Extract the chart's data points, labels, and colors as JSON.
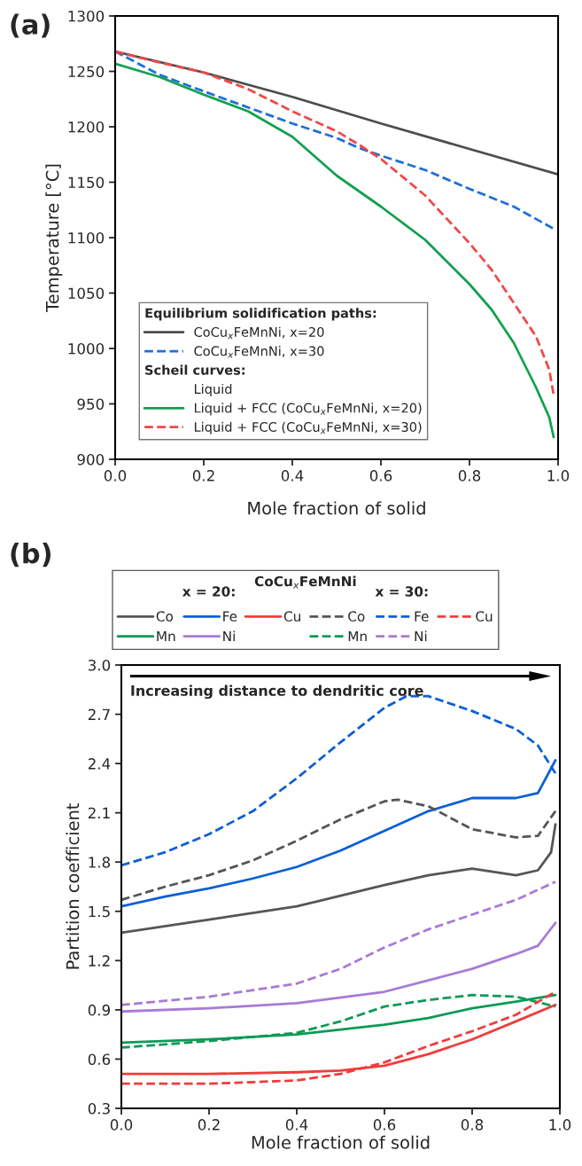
{
  "chart_data": [
    {
      "type": "line",
      "xlabel": "Mole fraction of solid",
      "ylabel": "Temperature [°C]",
      "xlim": [
        0,
        1
      ],
      "ylim": [
        900,
        1300
      ],
      "xticks": [
        {
          "value": 0,
          "label": "0.0"
        },
        {
          "value": 0.2,
          "label": "0.2"
        },
        {
          "value": 0.4,
          "label": "0.4"
        },
        {
          "value": 0.6,
          "label": "0.6"
        },
        {
          "value": 0.8,
          "label": "0.8"
        },
        {
          "value": 1,
          "label": "1.0"
        }
      ],
      "yticks": [
        900,
        950,
        1000,
        1050,
        1100,
        1150,
        1200,
        1250,
        1300
      ],
      "legend": "bottom left",
      "legend_title": "Equilibrium solidification paths:",
      "annotations": [
        "(a)",
        "Scheil curves:",
        "Liquid"
      ],
      "series": [
        {
          "name": "CoCu$_{x}$FeMnNi, x=20",
          "color": "#4d4d4d",
          "line_style": "solid",
          "x": [
            0,
            0.2,
            0.4,
            0.6,
            0.8,
            1.0
          ],
          "values": [
            1268,
            1249,
            1227,
            1203,
            1180,
            1157
          ]
        },
        {
          "name": "CoCu$_{x}$FeMnNi, x=30",
          "color": "#1f6fd8",
          "line_style": "dashed",
          "x": [
            0,
            0.1,
            0.2,
            0.4,
            0.5,
            0.55,
            0.6,
            0.7,
            0.8,
            0.9,
            0.99
          ],
          "values": [
            1268,
            1247,
            1232,
            1203,
            1190,
            1181,
            1174,
            1161,
            1144,
            1128,
            1108
          ]
        },
        {
          "name": "Liquid + FCC (CoCu$_{x}$FeMnNi, x=20)",
          "color": "#14a050",
          "line_style": "solid",
          "x": [
            0,
            0.1,
            0.2,
            0.3,
            0.4,
            0.5,
            0.6,
            0.7,
            0.8,
            0.85,
            0.9,
            0.95,
            0.98,
            0.99
          ],
          "values": [
            1257,
            1245,
            1229,
            1214,
            1191,
            1156,
            1128,
            1098,
            1058,
            1035,
            1005,
            965,
            938,
            920
          ]
        },
        {
          "name": "Liquid + FCC (CoCu$_{x}$FeMnNi, x=30)",
          "color": "#f04848",
          "line_style": "dashed",
          "x": [
            0,
            0.1,
            0.2,
            0.3,
            0.4,
            0.5,
            0.55,
            0.6,
            0.7,
            0.8,
            0.85,
            0.9,
            0.95,
            0.98,
            0.99
          ],
          "values": [
            1268,
            1258,
            1249,
            1234,
            1214,
            1196,
            1184,
            1171,
            1138,
            1095,
            1071,
            1041,
            1011,
            981,
            958
          ]
        }
      ]
    },
    {
      "type": "line",
      "xlabel": "Mole fraction of solid",
      "ylabel": "Partition coefficient",
      "xlim": [
        0,
        1
      ],
      "ylim": [
        0.3,
        3.0
      ],
      "xticks": [
        {
          "value": 0,
          "label": "0.0"
        },
        {
          "value": 0.2,
          "label": "0.2"
        },
        {
          "value": 0.4,
          "label": "0.4"
        },
        {
          "value": 0.6,
          "label": "0.6"
        },
        {
          "value": 0.8,
          "label": "0.8"
        },
        {
          "value": 1,
          "label": "1.0"
        }
      ],
      "yticks": [
        {
          "value": 0.3,
          "label": "0.3"
        },
        {
          "value": 0.6,
          "label": "0.6"
        },
        {
          "value": 0.9,
          "label": "0.9"
        },
        {
          "value": 1.2,
          "label": "1.2"
        },
        {
          "value": 1.5,
          "label": "1.5"
        },
        {
          "value": 1.8,
          "label": "1.8"
        },
        {
          "value": 2.1,
          "label": "2.1"
        },
        {
          "value": 2.4,
          "label": "2.4"
        },
        {
          "value": 2.7,
          "label": "2.7"
        },
        {
          "value": 3.0,
          "label": "3.0"
        }
      ],
      "legend": "top",
      "legend_title": "CoCu$_{x}$FeMnNi",
      "annotations": [
        "(b)",
        "x = 20:",
        "x = 30:",
        "Increasing distance to dendritic core"
      ],
      "series": [
        {
          "name": "Co",
          "color": "#555555",
          "line_style": "solid",
          "x": [
            0,
            0.2,
            0.4,
            0.6,
            0.7,
            0.8,
            0.9,
            0.95,
            0.98,
            0.99
          ],
          "values": [
            1.37,
            1.45,
            1.53,
            1.66,
            1.72,
            1.76,
            1.72,
            1.75,
            1.86,
            2.03
          ]
        },
        {
          "name": "Mn",
          "color": "#0c9a55",
          "line_style": "solid",
          "x": [
            0,
            0.2,
            0.4,
            0.6,
            0.7,
            0.8,
            0.9,
            0.99
          ],
          "values": [
            0.7,
            0.72,
            0.75,
            0.81,
            0.85,
            0.91,
            0.95,
            0.99
          ]
        },
        {
          "name": "Fe",
          "color": "#0a5fd6",
          "line_style": "solid",
          "x": [
            0,
            0.1,
            0.2,
            0.3,
            0.4,
            0.5,
            0.6,
            0.7,
            0.8,
            0.9,
            0.95,
            0.99
          ],
          "values": [
            1.53,
            1.59,
            1.64,
            1.7,
            1.77,
            1.87,
            1.99,
            2.11,
            2.19,
            2.19,
            2.22,
            2.42
          ]
        },
        {
          "name": "Ni",
          "color": "#a77bd6",
          "line_style": "solid",
          "x": [
            0,
            0.2,
            0.4,
            0.6,
            0.7,
            0.8,
            0.9,
            0.95,
            0.99
          ],
          "values": [
            0.89,
            0.91,
            0.94,
            1.01,
            1.08,
            1.15,
            1.24,
            1.29,
            1.43
          ]
        },
        {
          "name": "Cu",
          "color": "#f03c3c",
          "line_style": "solid",
          "x": [
            0,
            0.2,
            0.4,
            0.5,
            0.6,
            0.7,
            0.8,
            0.9,
            0.99
          ],
          "values": [
            0.51,
            0.51,
            0.52,
            0.53,
            0.56,
            0.63,
            0.72,
            0.83,
            0.93
          ]
        },
        {
          "name": "Co",
          "color": "#555555",
          "line_style": "dashed",
          "x": [
            0,
            0.1,
            0.2,
            0.3,
            0.4,
            0.5,
            0.6,
            0.63,
            0.7,
            0.8,
            0.9,
            0.95,
            0.99
          ],
          "values": [
            1.57,
            1.65,
            1.72,
            1.81,
            1.93,
            2.06,
            2.17,
            2.18,
            2.14,
            2.0,
            1.95,
            1.96,
            2.11
          ]
        },
        {
          "name": "Mn",
          "color": "#0c9a55",
          "line_style": "dashed",
          "x": [
            0,
            0.2,
            0.4,
            0.5,
            0.6,
            0.7,
            0.8,
            0.9,
            0.99
          ],
          "values": [
            0.67,
            0.71,
            0.76,
            0.83,
            0.92,
            0.96,
            0.99,
            0.98,
            0.92
          ]
        },
        {
          "name": "Fe",
          "color": "#0a5fd6",
          "line_style": "dashed",
          "x": [
            0,
            0.1,
            0.2,
            0.3,
            0.4,
            0.5,
            0.6,
            0.65,
            0.7,
            0.8,
            0.9,
            0.95,
            0.99
          ],
          "values": [
            1.78,
            1.86,
            1.97,
            2.11,
            2.31,
            2.53,
            2.74,
            2.81,
            2.81,
            2.72,
            2.61,
            2.51,
            2.34
          ]
        },
        {
          "name": "Ni",
          "color": "#a77bd6",
          "line_style": "dashed",
          "x": [
            0,
            0.2,
            0.4,
            0.5,
            0.6,
            0.7,
            0.8,
            0.9,
            0.99
          ],
          "values": [
            0.93,
            0.98,
            1.06,
            1.15,
            1.28,
            1.39,
            1.48,
            1.57,
            1.68
          ]
        },
        {
          "name": "Cu",
          "color": "#f03c3c",
          "line_style": "dashed",
          "x": [
            0,
            0.2,
            0.4,
            0.5,
            0.6,
            0.7,
            0.8,
            0.9,
            0.99
          ],
          "values": [
            0.45,
            0.45,
            0.47,
            0.51,
            0.58,
            0.68,
            0.77,
            0.87,
            1.01
          ]
        }
      ]
    }
  ]
}
